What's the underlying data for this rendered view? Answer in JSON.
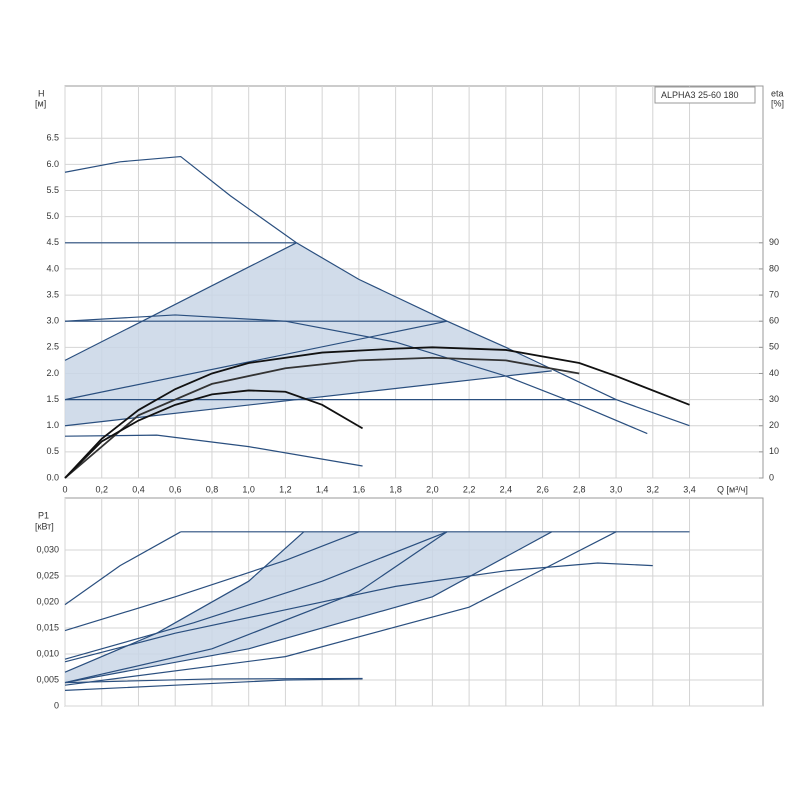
{
  "chart_data": [
    {
      "type": "line",
      "title": "ALPHA3 25-60 180",
      "ylabel": [
        "H",
        "[м]"
      ],
      "y2label": [
        "eta",
        "[%]"
      ],
      "xlabel": "Q [м³/ч]",
      "xlim": [
        0,
        3.8
      ],
      "ylim": [
        0,
        7.5
      ],
      "y2lim": [
        0,
        150
      ],
      "xticks": [
        0,
        {
          "value": 0.2,
          "label": "0,2"
        },
        {
          "value": 0.4,
          "label": "0,4"
        },
        {
          "value": 0.6,
          "label": "0,6"
        },
        {
          "value": 0.8,
          "label": "0,8"
        },
        {
          "value": 1,
          "label": "1,0"
        },
        {
          "value": 1.2,
          "label": "1,2"
        },
        {
          "value": 1.4,
          "label": "1,4"
        },
        {
          "value": 1.6,
          "label": "1,6"
        },
        {
          "value": 1.8,
          "label": "1,8"
        },
        {
          "value": 2,
          "label": "2,0"
        },
        {
          "value": 2.2,
          "label": "2,2"
        },
        {
          "value": 2.4,
          "label": "2,4"
        },
        {
          "value": 2.6,
          "label": "2,6"
        },
        {
          "value": 2.8,
          "label": "2,8"
        },
        {
          "value": 3,
          "label": "3,0"
        },
        {
          "value": 3.2,
          "label": "3,2"
        },
        {
          "value": 3.4,
          "label": "3,4"
        }
      ],
      "yticks": [
        {
          "value": 0,
          "label": "0.0"
        },
        0.5,
        {
          "value": 1,
          "label": "1.0"
        },
        1.5,
        {
          "value": 2,
          "label": "2.0"
        },
        2.5,
        {
          "value": 3,
          "label": "3.0"
        },
        3.5,
        {
          "value": 4,
          "label": "4.0"
        },
        4.5,
        {
          "value": 5,
          "label": "5.0"
        },
        5.5,
        {
          "value": 6,
          "label": "6.0"
        },
        6.5
      ],
      "y2ticks": [
        0,
        10,
        20,
        30,
        40,
        50,
        60,
        70,
        80,
        90
      ],
      "grid": true,
      "areas": [
        {
          "color": "#c9d6e6",
          "x": [
            0,
            1.26,
            1.6,
            2.08,
            2.4,
            2.65,
            0
          ],
          "values": [
            2.25,
            4.5,
            3.8,
            3.0,
            2.5,
            2.05,
            1.0
          ]
        }
      ],
      "series": [
        {
          "color": "#2a4f7f",
          "x": [
            0,
            0.3,
            0.63,
            0.9,
            1.26,
            1.6,
            2.08,
            2.4,
            2.7,
            3.0,
            3.4
          ],
          "values": [
            5.85,
            6.05,
            6.15,
            5.4,
            4.5,
            3.8,
            3.0,
            2.5,
            2.0,
            1.5,
            1.0
          ]
        },
        {
          "color": "#2a4f7f",
          "x": [
            0,
            1.26
          ],
          "values": [
            2.25,
            4.5
          ]
        },
        {
          "color": "#2a4f7f",
          "x": [
            0,
            2.08
          ],
          "values": [
            1.5,
            3.0
          ]
        },
        {
          "color": "#2a4f7f",
          "x": [
            0,
            2.65
          ],
          "values": [
            1.0,
            2.05
          ]
        },
        {
          "color": "#2a4f7f",
          "x": [
            0,
            1.26
          ],
          "values": [
            4.5,
            4.5
          ]
        },
        {
          "color": "#2a4f7f",
          "x": [
            0,
            2.08
          ],
          "values": [
            3.0,
            3.0
          ]
        },
        {
          "color": "#2a4f7f",
          "x": [
            0,
            3.0
          ],
          "values": [
            1.5,
            1.5
          ]
        },
        {
          "color": "#2a4f7f",
          "x": [
            0,
            0.6,
            1.2,
            1.8,
            2.4,
            2.8,
            3.17
          ],
          "values": [
            3.0,
            3.12,
            3.0,
            2.6,
            1.95,
            1.4,
            0.85
          ]
        },
        {
          "color": "#2a4f7f",
          "x": [
            0,
            0.5,
            1.0,
            1.62
          ],
          "values": [
            0.8,
            0.82,
            0.6,
            0.23
          ]
        },
        {
          "color": "#111111",
          "axis": "y2",
          "x": [
            0,
            0.2,
            0.4,
            0.6,
            0.8,
            1.0,
            1.4,
            1.8,
            2.0,
            2.4,
            2.8,
            3.0,
            3.4
          ],
          "values": [
            0,
            15,
            26,
            34,
            40,
            44,
            48,
            49.5,
            50,
            49,
            44,
            39,
            28
          ]
        },
        {
          "color": "#333333",
          "axis": "y2",
          "x": [
            0,
            0.4,
            0.8,
            1.2,
            1.6,
            2.0,
            2.4,
            2.8
          ],
          "values": [
            0,
            24,
            36,
            42,
            45,
            46,
            45,
            40
          ]
        },
        {
          "color": "#111111",
          "axis": "y2",
          "x": [
            0,
            0.2,
            0.4,
            0.6,
            0.8,
            1.0,
            1.2,
            1.4,
            1.62
          ],
          "values": [
            0,
            14,
            22,
            28,
            32,
            33.5,
            33,
            28,
            19
          ]
        }
      ]
    },
    {
      "type": "line",
      "ylabel": [
        "P1",
        "[кВт]"
      ],
      "xlim": [
        0,
        3.8
      ],
      "ylim": [
        0,
        0.04
      ],
      "yticks": [
        0,
        {
          "value": 0.005,
          "label": "0,005"
        },
        {
          "value": 0.01,
          "label": "0,010"
        },
        {
          "value": 0.015,
          "label": "0,015"
        },
        {
          "value": 0.02,
          "label": "0,020"
        },
        {
          "value": 0.025,
          "label": "0,025"
        },
        {
          "value": 0.03,
          "label": "0,030"
        }
      ],
      "grid": true,
      "areas": [
        {
          "color": "#c9d6e6",
          "x": [
            0,
            0.5,
            1.0,
            1.3,
            2.65,
            2.0,
            1.0,
            0
          ],
          "values": [
            0.0065,
            0.014,
            0.024,
            0.0335,
            0.0335,
            0.021,
            0.011,
            0.0045
          ]
        }
      ],
      "series": [
        {
          "color": "#2a4f7f",
          "x": [
            0.63,
            3.4
          ],
          "values": [
            0.0335,
            0.0335
          ]
        },
        {
          "color": "#2a4f7f",
          "x": [
            0,
            0.3,
            0.63
          ],
          "values": [
            0.0195,
            0.027,
            0.0335
          ]
        },
        {
          "color": "#2a4f7f",
          "x": [
            0,
            0.6,
            1.2,
            1.6
          ],
          "values": [
            0.0145,
            0.021,
            0.028,
            0.0335
          ]
        },
        {
          "color": "#2a4f7f",
          "x": [
            0,
            0.5,
            1.0,
            1.3
          ],
          "values": [
            0.0065,
            0.014,
            0.024,
            0.0335
          ]
        },
        {
          "color": "#2a4f7f",
          "x": [
            0,
            0.7,
            1.4,
            2.08
          ],
          "values": [
            0.009,
            0.016,
            0.024,
            0.0335
          ]
        },
        {
          "color": "#2a4f7f",
          "x": [
            0,
            0.8,
            1.6,
            2.08
          ],
          "values": [
            0.0045,
            0.011,
            0.022,
            0.0335
          ]
        },
        {
          "color": "#2a4f7f",
          "x": [
            0,
            1.0,
            2.0,
            2.65
          ],
          "values": [
            0.0045,
            0.011,
            0.021,
            0.0335
          ]
        },
        {
          "color": "#2a4f7f",
          "x": [
            0,
            1.2,
            2.2,
            3.0
          ],
          "values": [
            0.004,
            0.0095,
            0.019,
            0.0335
          ]
        },
        {
          "color": "#2a4f7f",
          "x": [
            0,
            0.6,
            1.2,
            1.8,
            2.4,
            2.9,
            3.2
          ],
          "values": [
            0.0085,
            0.014,
            0.0185,
            0.023,
            0.026,
            0.0275,
            0.027
          ]
        },
        {
          "color": "#2a4f7f",
          "x": [
            0,
            0.6,
            1.2,
            1.62
          ],
          "values": [
            0.003,
            0.004,
            0.005,
            0.0052
          ]
        },
        {
          "color": "#2a4f7f",
          "x": [
            0,
            0.8,
            1.62
          ],
          "values": [
            0.0045,
            0.0052,
            0.0053
          ]
        }
      ]
    }
  ]
}
